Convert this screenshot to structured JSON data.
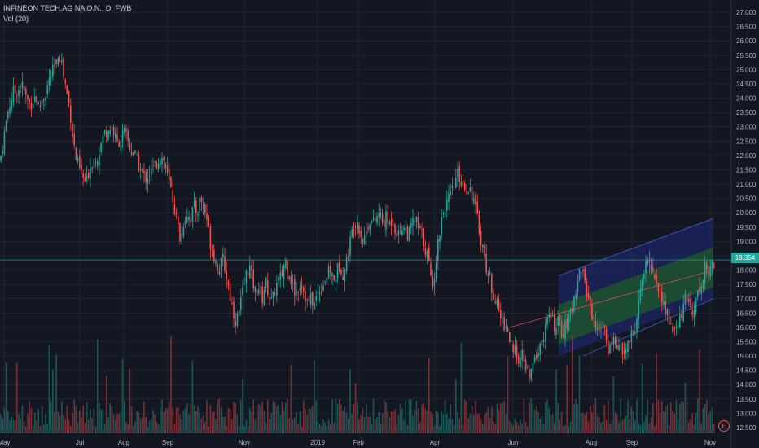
{
  "header": {
    "symbol_line": "INFINEON TECH.AG NA O.N., D, FWB",
    "volume_label": "Vol (20)"
  },
  "last_price": "18.354",
  "earnings_marker": "E",
  "colors": {
    "background": "#131722",
    "grid": "#2a2e39",
    "up": "#26a69a",
    "down": "#ef5350",
    "text": "#b2b5be",
    "channel_outer": "#1e2a78",
    "channel_inner": "#1e5a2a"
  },
  "chart_data": {
    "type": "candlestick",
    "title": "INFINEON TECH.AG NA O.N., D, FWB",
    "y_ticks": [
      "12.500",
      "13.000",
      "13.500",
      "14.000",
      "14.500",
      "15.000",
      "15.500",
      "16.000",
      "16.500",
      "17.000",
      "17.500",
      "18.000",
      "18.500",
      "19.000",
      "19.500",
      "20.000",
      "20.500",
      "21.000",
      "21.500",
      "22.000",
      "22.500",
      "23.000",
      "23.500",
      "24.000",
      "24.500",
      "25.000",
      "25.500",
      "26.000",
      "26.500",
      "27.000"
    ],
    "ylim": [
      12.3,
      27.2
    ],
    "x_ticks": [
      "May",
      "Jul",
      "Aug",
      "Sep",
      "Nov",
      "2019",
      "Feb",
      "Apr",
      "Jun",
      "Aug",
      "Sep",
      "Nov"
    ],
    "close_path": [
      [
        0,
        21.8
      ],
      [
        4,
        22.5
      ],
      [
        10,
        23.6
      ],
      [
        16,
        24.2
      ],
      [
        22,
        24.3
      ],
      [
        28,
        24.4
      ],
      [
        32,
        24.0
      ],
      [
        38,
        23.8
      ],
      [
        44,
        24.1
      ],
      [
        48,
        23.6
      ],
      [
        52,
        24.0
      ],
      [
        56,
        24.2
      ],
      [
        60,
        24.6
      ],
      [
        66,
        25.0
      ],
      [
        70,
        25.2
      ],
      [
        74,
        25.6
      ],
      [
        78,
        24.8
      ],
      [
        82,
        24.2
      ],
      [
        86,
        23.6
      ],
      [
        90,
        22.5
      ],
      [
        94,
        21.8
      ],
      [
        98,
        21.5
      ],
      [
        102,
        21.2
      ],
      [
        106,
        21.0
      ],
      [
        110,
        21.6
      ],
      [
        116,
        21.9
      ],
      [
        120,
        22.0
      ],
      [
        124,
        22.4
      ],
      [
        128,
        22.8
      ],
      [
        132,
        22.9
      ],
      [
        136,
        23.0
      ],
      [
        140,
        22.8
      ],
      [
        144,
        22.4
      ],
      [
        148,
        22.6
      ],
      [
        152,
        22.8
      ],
      [
        156,
        22.6
      ],
      [
        160,
        22.2
      ],
      [
        166,
        22.0
      ],
      [
        172,
        21.5
      ],
      [
        178,
        21.2
      ],
      [
        184,
        21.4
      ],
      [
        190,
        21.6
      ],
      [
        196,
        22.0
      ],
      [
        202,
        21.8
      ],
      [
        206,
        21.2
      ],
      [
        210,
        20.8
      ],
      [
        214,
        20.2
      ],
      [
        218,
        19.6
      ],
      [
        222,
        19.0
      ],
      [
        226,
        19.8
      ],
      [
        230,
        20.0
      ],
      [
        234,
        19.8
      ],
      [
        238,
        20.2
      ],
      [
        242,
        20.0
      ],
      [
        246,
        20.5
      ],
      [
        250,
        20.2
      ],
      [
        254,
        19.8
      ],
      [
        258,
        19.0
      ],
      [
        262,
        18.6
      ],
      [
        266,
        18.2
      ],
      [
        270,
        18.0
      ],
      [
        274,
        18.4
      ],
      [
        278,
        17.8
      ],
      [
        282,
        17.2
      ],
      [
        286,
        16.6
      ],
      [
        290,
        16.2
      ],
      [
        294,
        16.6
      ],
      [
        298,
        17.2
      ],
      [
        302,
        17.8
      ],
      [
        306,
        18.2
      ],
      [
        310,
        17.6
      ],
      [
        314,
        17.2
      ],
      [
        318,
        17.4
      ],
      [
        322,
        17.0
      ],
      [
        326,
        17.6
      ],
      [
        330,
        17.2
      ],
      [
        334,
        16.8
      ],
      [
        338,
        17.4
      ],
      [
        342,
        17.6
      ],
      [
        346,
        17.8
      ],
      [
        350,
        18.4
      ],
      [
        354,
        18.0
      ],
      [
        358,
        17.6
      ],
      [
        362,
        17.2
      ],
      [
        366,
        17.4
      ],
      [
        370,
        17.6
      ],
      [
        374,
        17.2
      ],
      [
        378,
        16.8
      ],
      [
        382,
        17.0
      ],
      [
        386,
        16.8
      ],
      [
        390,
        17.2
      ],
      [
        394,
        17.4
      ],
      [
        398,
        17.6
      ],
      [
        402,
        17.8
      ],
      [
        406,
        18.0
      ],
      [
        410,
        17.6
      ],
      [
        414,
        18.0
      ],
      [
        418,
        18.2
      ],
      [
        422,
        17.8
      ],
      [
        426,
        18.4
      ],
      [
        430,
        19.0
      ],
      [
        434,
        19.6
      ],
      [
        438,
        19.8
      ],
      [
        442,
        19.4
      ],
      [
        446,
        19.0
      ],
      [
        450,
        19.4
      ],
      [
        454,
        19.8
      ],
      [
        458,
        19.6
      ],
      [
        462,
        19.8
      ],
      [
        466,
        20.0
      ],
      [
        470,
        19.6
      ],
      [
        474,
        19.8
      ],
      [
        478,
        19.6
      ],
      [
        482,
        19.8
      ],
      [
        486,
        19.4
      ],
      [
        490,
        19.2
      ],
      [
        494,
        19.6
      ],
      [
        498,
        19.4
      ],
      [
        502,
        19.2
      ],
      [
        506,
        19.6
      ],
      [
        510,
        19.8
      ],
      [
        514,
        19.4
      ],
      [
        518,
        19.2
      ],
      [
        522,
        18.8
      ],
      [
        526,
        18.4
      ],
      [
        530,
        17.4
      ],
      [
        534,
        18.0
      ],
      [
        538,
        19.0
      ],
      [
        542,
        19.8
      ],
      [
        546,
        20.2
      ],
      [
        550,
        20.4
      ],
      [
        554,
        20.6
      ],
      [
        558,
        21.0
      ],
      [
        562,
        21.3
      ],
      [
        566,
        21.2
      ],
      [
        570,
        20.9
      ],
      [
        574,
        20.9
      ],
      [
        578,
        20.8
      ],
      [
        582,
        20.4
      ],
      [
        586,
        19.8
      ],
      [
        590,
        19.2
      ],
      [
        594,
        18.6
      ],
      [
        598,
        18.0
      ],
      [
        602,
        17.6
      ],
      [
        606,
        17.2
      ],
      [
        610,
        16.8
      ],
      [
        614,
        16.4
      ],
      [
        618,
        16.2
      ],
      [
        622,
        16.0
      ],
      [
        626,
        15.6
      ],
      [
        630,
        15.0
      ],
      [
        634,
        15.2
      ],
      [
        638,
        14.8
      ],
      [
        642,
        15.0
      ],
      [
        646,
        14.6
      ],
      [
        650,
        14.2
      ],
      [
        654,
        14.6
      ],
      [
        658,
        15.0
      ],
      [
        662,
        15.2
      ],
      [
        666,
        15.6
      ],
      [
        670,
        16.0
      ],
      [
        674,
        16.4
      ],
      [
        678,
        16.2
      ],
      [
        682,
        16.0
      ],
      [
        686,
        16.2
      ],
      [
        690,
        15.8
      ],
      [
        694,
        16.0
      ],
      [
        698,
        16.2
      ],
      [
        702,
        16.6
      ],
      [
        706,
        17.2
      ],
      [
        710,
        17.8
      ],
      [
        714,
        18.1
      ],
      [
        718,
        17.6
      ],
      [
        722,
        17.0
      ],
      [
        726,
        16.6
      ],
      [
        730,
        16.2
      ],
      [
        734,
        15.8
      ],
      [
        738,
        16.2
      ],
      [
        742,
        15.8
      ],
      [
        746,
        15.2
      ],
      [
        750,
        15.4
      ],
      [
        754,
        15.6
      ],
      [
        758,
        15.4
      ],
      [
        762,
        15.2
      ],
      [
        766,
        15.0
      ],
      [
        770,
        15.4
      ],
      [
        774,
        15.6
      ],
      [
        778,
        15.8
      ],
      [
        782,
        16.4
      ],
      [
        786,
        17.2
      ],
      [
        790,
        17.8
      ],
      [
        794,
        18.2
      ],
      [
        798,
        18.3
      ],
      [
        802,
        18.0
      ],
      [
        806,
        17.6
      ],
      [
        810,
        17.2
      ],
      [
        814,
        16.8
      ],
      [
        818,
        16.6
      ],
      [
        822,
        16.2
      ],
      [
        826,
        16.0
      ],
      [
        830,
        15.8
      ],
      [
        834,
        16.2
      ],
      [
        838,
        16.6
      ],
      [
        842,
        17.0
      ],
      [
        846,
        16.8
      ],
      [
        850,
        16.6
      ],
      [
        854,
        17.0
      ],
      [
        858,
        17.2
      ],
      [
        862,
        17.6
      ],
      [
        866,
        18.2
      ],
      [
        870,
        17.8
      ],
      [
        874,
        18.3
      ]
    ]
  }
}
